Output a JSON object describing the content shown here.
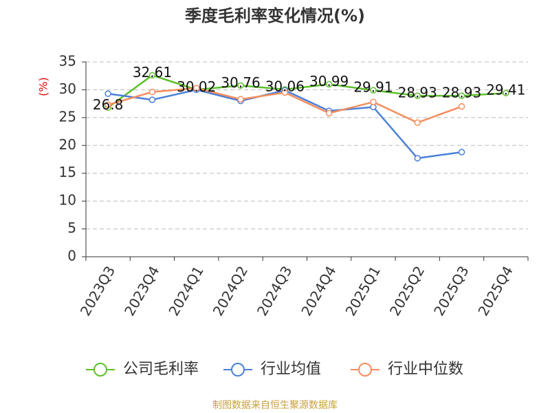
{
  "chart_data": {
    "type": "line",
    "title": "季度毛利率变化情况(%)",
    "y_label": "(%)",
    "categories": [
      "2023Q3",
      "2023Q4",
      "2024Q1",
      "2024Q2",
      "2024Q3",
      "2024Q4",
      "2025Q1",
      "2025Q2",
      "2025Q3",
      "2025Q4"
    ],
    "series": [
      {
        "name": "公司毛利率",
        "color": "#5cbf2a",
        "values": [
          26.8,
          32.61,
          30.02,
          30.76,
          30.06,
          30.99,
          29.91,
          28.93,
          28.93,
          29.41
        ],
        "show_labels": true
      },
      {
        "name": "行业均值",
        "color": "#4a7fd8",
        "values": [
          29.3,
          28.2,
          30.0,
          28.0,
          29.9,
          26.2,
          26.9,
          17.7,
          18.8,
          null
        ]
      },
      {
        "name": "行业中位数",
        "color": "#f58d5c",
        "values": [
          27.3,
          29.6,
          30.3,
          28.3,
          29.5,
          25.8,
          27.8,
          24.1,
          27.0,
          null
        ]
      }
    ],
    "ylim": [
      0,
      35
    ],
    "yticks": [
      0,
      5,
      10,
      15,
      20,
      25,
      30,
      35
    ],
    "grid": true,
    "source": "制图数据来自恒生聚源数据库"
  }
}
